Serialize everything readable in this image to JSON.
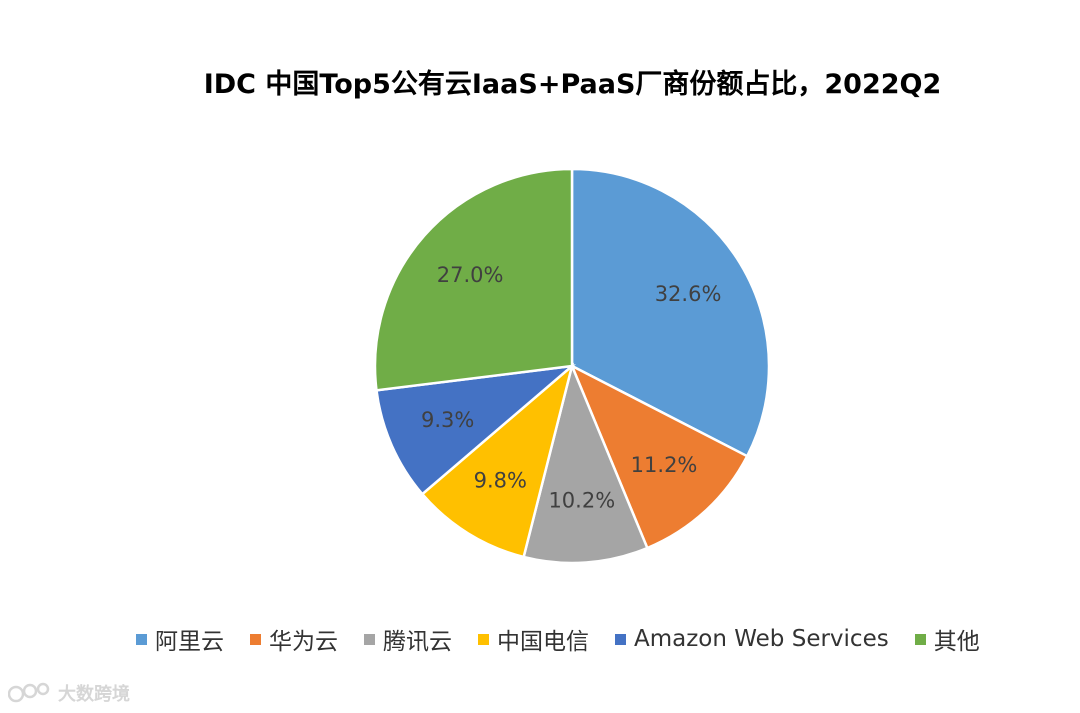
{
  "chart_data": {
    "type": "pie",
    "title": "IDC 中国Top5公有云IaaS+PaaS厂商份额占比，2022Q2",
    "slices": [
      {
        "label": "阿里云",
        "value": 32.6,
        "display": "32.6%",
        "color": "#5b9bd5"
      },
      {
        "label": "华为云",
        "value": 11.2,
        "display": "11.2%",
        "color": "#ed7d31"
      },
      {
        "label": "腾讯云",
        "value": 10.2,
        "display": "10.2%",
        "color": "#a5a5a5"
      },
      {
        "label": "中国电信",
        "value": 9.8,
        "display": "9.8%",
        "color": "#ffc000"
      },
      {
        "label": "Amazon Web Services",
        "value": 9.3,
        "display": "9.3%",
        "color": "#4472c4"
      },
      {
        "label": "其他",
        "value": 27.0,
        "display": "27.0%",
        "color": "#70ad47"
      }
    ],
    "start_angle_deg": 0,
    "direction": "clockwise",
    "legend_position": "bottom"
  },
  "watermark": {
    "text": "大数跨境"
  }
}
